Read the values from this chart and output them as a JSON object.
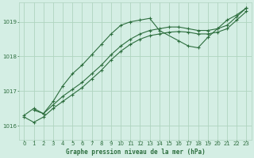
{
  "background_color": "#d4eee4",
  "grid_color": "#b0d4c0",
  "line_color": "#2d6e3e",
  "xlabel": "Graphe pression niveau de la mer (hPa)",
  "xlim": [
    -0.5,
    23.5
  ],
  "ylim": [
    1015.6,
    1019.55
  ],
  "yticks": [
    1016,
    1017,
    1018,
    1019
  ],
  "xticks": [
    0,
    1,
    2,
    3,
    4,
    5,
    6,
    7,
    8,
    9,
    10,
    11,
    12,
    13,
    14,
    15,
    16,
    17,
    18,
    19,
    20,
    21,
    22,
    23
  ],
  "curve_hump_x": [
    1,
    2,
    3,
    4,
    5,
    6,
    7,
    8,
    9,
    10,
    11,
    12,
    13,
    14,
    16,
    17,
    18,
    19,
    20,
    21,
    22,
    23
  ],
  "curve_hump_y": [
    1016.45,
    1016.35,
    1016.7,
    1017.15,
    1017.5,
    1017.75,
    1018.05,
    1018.35,
    1018.65,
    1018.9,
    1019.0,
    1019.05,
    1019.1,
    1018.75,
    1018.45,
    1018.3,
    1018.25,
    1018.55,
    1018.8,
    1019.05,
    1019.2,
    1019.4
  ],
  "curve_upper_x": [
    0,
    1,
    2,
    3,
    4,
    5,
    6,
    7,
    8,
    9,
    10,
    11,
    12,
    13,
    14,
    15,
    16,
    17,
    18,
    19,
    20,
    21,
    22,
    23
  ],
  "curve_upper_y": [
    1016.3,
    1016.5,
    1016.35,
    1016.6,
    1016.85,
    1017.05,
    1017.25,
    1017.5,
    1017.75,
    1018.05,
    1018.3,
    1018.5,
    1018.65,
    1018.75,
    1018.8,
    1018.85,
    1018.85,
    1018.8,
    1018.75,
    1018.75,
    1018.8,
    1018.9,
    1019.15,
    1019.4
  ],
  "curve_lower_x": [
    0,
    1,
    2,
    3,
    4,
    5,
    6,
    7,
    8,
    9,
    10,
    11,
    12,
    13,
    14,
    15,
    16,
    17,
    18,
    19,
    20,
    21,
    22,
    23
  ],
  "curve_lower_y": [
    1016.25,
    1016.1,
    1016.25,
    1016.5,
    1016.7,
    1016.9,
    1017.1,
    1017.35,
    1017.6,
    1017.9,
    1018.15,
    1018.35,
    1018.5,
    1018.6,
    1018.65,
    1018.7,
    1018.72,
    1018.7,
    1018.65,
    1018.65,
    1018.7,
    1018.8,
    1019.05,
    1019.3
  ]
}
